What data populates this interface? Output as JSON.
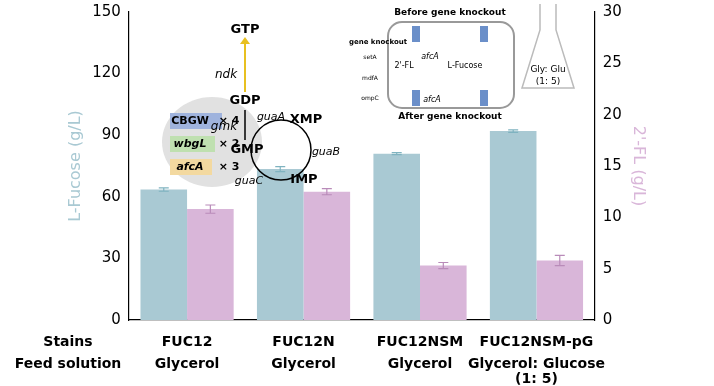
{
  "chart_data": {
    "type": "bar",
    "categories": [
      "FUC12",
      "FUC12N",
      "FUC12NSM",
      "FUC12NSM-pG"
    ],
    "category_title": "Stains",
    "feed_solution_title": "Feed solution",
    "feed_solution": [
      [
        "Glycerol"
      ],
      [
        "Glycerol"
      ],
      [
        "Glycerol"
      ],
      [
        "Glycerol: Glucose",
        "(1: 5)"
      ]
    ],
    "ylabel": "L-Fucose (g/L)",
    "y2label": "2'-FL (g/L)",
    "ylim": [
      0,
      150
    ],
    "yticks": [
      0,
      30,
      60,
      90,
      120,
      150
    ],
    "y2lim": [
      0,
      30
    ],
    "y2ticks": [
      0,
      5,
      10,
      15,
      20,
      25,
      30
    ],
    "grid": false,
    "series": [
      {
        "name": "L-Fucose",
        "color": "#a9c9d3",
        "values": [
          63.5,
          73.5,
          81,
          92
        ],
        "error": [
          0.8,
          1.2,
          0.5,
          0.6
        ]
      },
      {
        "name": "2'-FL",
        "color": "#d9b6d9",
        "values": [
          10.8,
          12.5,
          5.3,
          5.8
        ],
        "error": [
          0.4,
          0.3,
          0.3,
          0.5
        ],
        "axis": "y2"
      }
    ],
    "annotations": [
      "GTP",
      "ndk",
      "GDP",
      "gmk",
      "GMP",
      "guaA",
      "XMP",
      "guaB",
      "IMP",
      "guaC",
      "CBGW",
      "× 4",
      "wbgL",
      "× 2",
      "afcA",
      "× 3",
      "Before gene knockout",
      "gene knockout",
      "setA",
      "mdfA",
      "ompC",
      "2'-FL",
      "afcA",
      "L-Fucose",
      "afcA",
      "After gene knockout",
      "Gly: Glu",
      "(1: 5)"
    ]
  }
}
